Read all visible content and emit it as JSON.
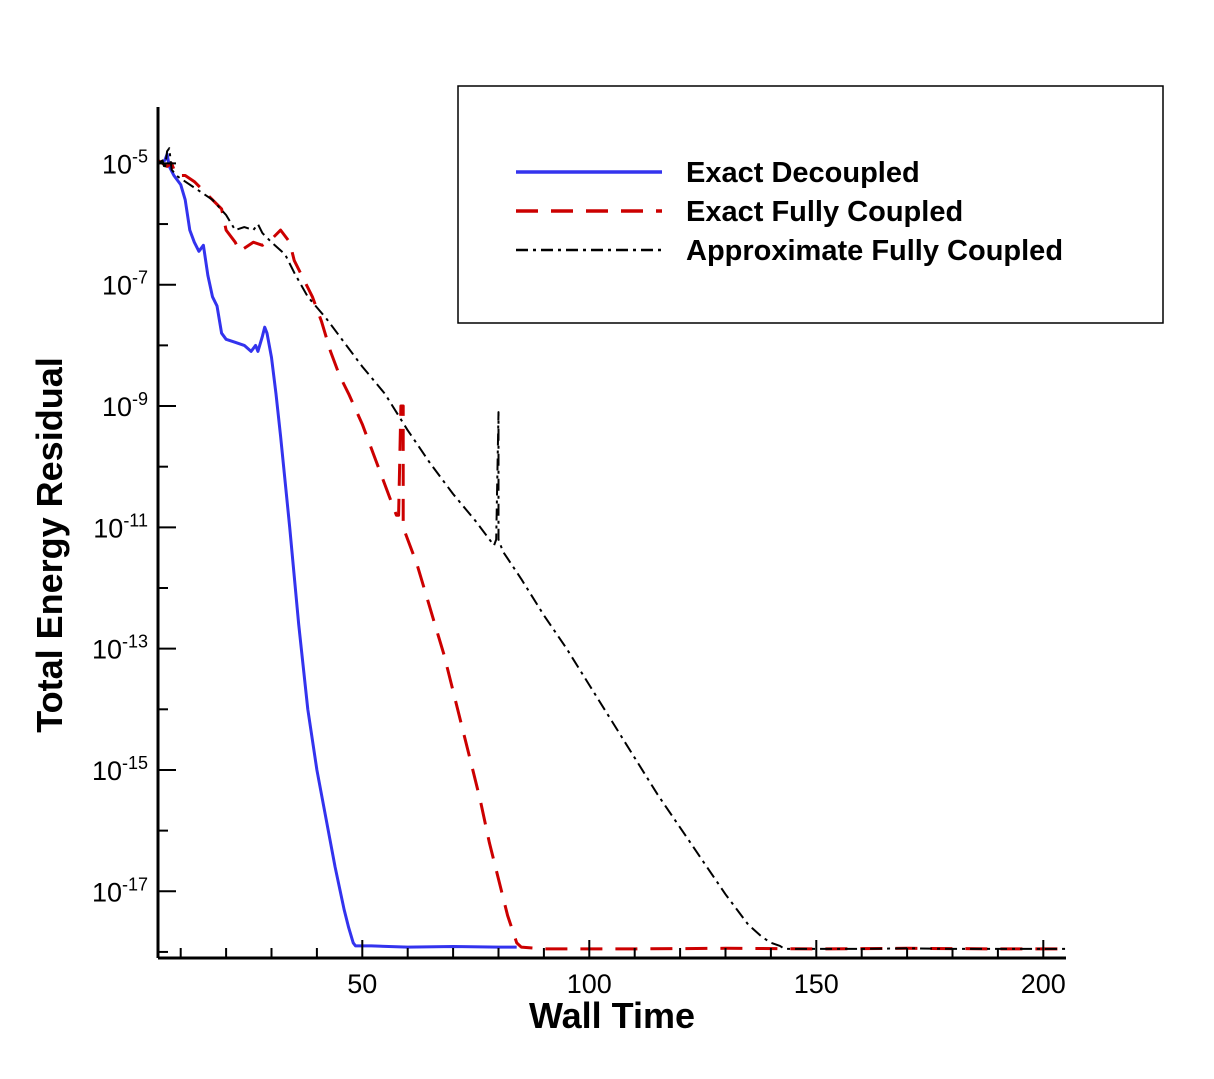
{
  "chart_data": {
    "type": "line",
    "xlabel": "Wall Time",
    "ylabel": "Total Energy Residual",
    "x_scale": "linear",
    "y_scale": "log",
    "xlim": [
      5,
      205
    ],
    "ylim": [
      -18.1,
      -4.4
    ],
    "x_ticks": [
      50,
      100,
      150,
      200
    ],
    "y_ticks": [
      {
        "base": "10",
        "exp": "-5",
        "value": -5
      },
      {
        "base": "10",
        "exp": "-7",
        "value": -7
      },
      {
        "base": "10",
        "exp": "-9",
        "value": -9
      },
      {
        "base": "10",
        "exp": "-11",
        "value": -11
      },
      {
        "base": "10",
        "exp": "-13",
        "value": -13
      },
      {
        "base": "10",
        "exp": "-15",
        "value": -15
      },
      {
        "base": "10",
        "exp": "-17",
        "value": -17
      }
    ],
    "legend_position": "top-right",
    "series": [
      {
        "name": "Exact Decoupled",
        "color": "#3333ee",
        "dash": "solid",
        "points": [
          [
            5,
            -5
          ],
          [
            6.5,
            -4.95
          ],
          [
            7,
            -4.85
          ],
          [
            7.5,
            -5.05
          ],
          [
            8.5,
            -5.2
          ],
          [
            10,
            -5.35
          ],
          [
            11,
            -5.6
          ],
          [
            12,
            -6.1
          ],
          [
            13,
            -6.3
          ],
          [
            14,
            -6.45
          ],
          [
            15,
            -6.35
          ],
          [
            16,
            -6.85
          ],
          [
            17,
            -7.2
          ],
          [
            18,
            -7.35
          ],
          [
            19,
            -7.8
          ],
          [
            20,
            -7.9
          ],
          [
            22,
            -7.95
          ],
          [
            24,
            -8.0
          ],
          [
            25.5,
            -8.1
          ],
          [
            26.5,
            -8.0
          ],
          [
            27,
            -8.1
          ],
          [
            28,
            -7.85
          ],
          [
            28.5,
            -7.7
          ],
          [
            29,
            -7.8
          ],
          [
            30,
            -8.2
          ],
          [
            31,
            -8.8
          ],
          [
            32,
            -9.5
          ],
          [
            34,
            -11.0
          ],
          [
            36,
            -12.6
          ],
          [
            38,
            -14.0
          ],
          [
            40,
            -15.0
          ],
          [
            42,
            -15.8
          ],
          [
            44,
            -16.6
          ],
          [
            46,
            -17.3
          ],
          [
            47,
            -17.6
          ],
          [
            48,
            -17.85
          ],
          [
            48.5,
            -17.9
          ],
          [
            52,
            -17.9
          ],
          [
            60,
            -17.92
          ],
          [
            70,
            -17.91
          ],
          [
            80,
            -17.92
          ],
          [
            84,
            -17.92
          ]
        ]
      },
      {
        "name": "Exact Fully Coupled",
        "color": "#cc0000",
        "dash": "dashed",
        "points": [
          [
            5,
            -4.95
          ],
          [
            7,
            -5.05
          ],
          [
            8,
            -5.0
          ],
          [
            9,
            -5.2
          ],
          [
            11,
            -5.2
          ],
          [
            13,
            -5.3
          ],
          [
            15,
            -5.45
          ],
          [
            17,
            -5.6
          ],
          [
            19,
            -5.75
          ],
          [
            20,
            -6.1
          ],
          [
            22,
            -6.3
          ],
          [
            23,
            -6.45
          ],
          [
            24,
            -6.4
          ],
          [
            26,
            -6.3
          ],
          [
            28,
            -6.35
          ],
          [
            30,
            -6.25
          ],
          [
            32,
            -6.1
          ],
          [
            34,
            -6.3
          ],
          [
            35,
            -6.6
          ],
          [
            37,
            -6.9
          ],
          [
            39,
            -7.2
          ],
          [
            41,
            -7.6
          ],
          [
            43,
            -8.1
          ],
          [
            45,
            -8.5
          ],
          [
            47,
            -8.8
          ],
          [
            50,
            -9.3
          ],
          [
            53,
            -9.9
          ],
          [
            56,
            -10.5
          ],
          [
            57.5,
            -10.8
          ],
          [
            58,
            -10.8
          ],
          [
            58.5,
            -9.0
          ],
          [
            59,
            -9.0
          ],
          [
            59,
            -11.0
          ],
          [
            60,
            -11.2
          ],
          [
            62,
            -11.6
          ],
          [
            64,
            -12.1
          ],
          [
            66,
            -12.6
          ],
          [
            68,
            -13.1
          ],
          [
            70,
            -13.7
          ],
          [
            72,
            -14.3
          ],
          [
            74,
            -14.9
          ],
          [
            76,
            -15.5
          ],
          [
            78,
            -16.2
          ],
          [
            80,
            -16.8
          ],
          [
            82,
            -17.4
          ],
          [
            84,
            -17.85
          ],
          [
            85,
            -17.92
          ],
          [
            90,
            -17.95
          ],
          [
            110,
            -17.95
          ],
          [
            130,
            -17.94
          ],
          [
            150,
            -17.95
          ],
          [
            170,
            -17.94
          ],
          [
            190,
            -17.95
          ],
          [
            205,
            -17.95
          ]
        ]
      },
      {
        "name": "Approximate Fully Coupled",
        "color": "#000000",
        "dash": "dashdot",
        "points": [
          [
            5,
            -5.0
          ],
          [
            6,
            -4.95
          ],
          [
            6.5,
            -5.1
          ],
          [
            7,
            -4.8
          ],
          [
            7.5,
            -4.75
          ],
          [
            8,
            -5.1
          ],
          [
            9,
            -5.2
          ],
          [
            11,
            -5.3
          ],
          [
            14,
            -5.45
          ],
          [
            17,
            -5.6
          ],
          [
            20,
            -5.85
          ],
          [
            22,
            -6.1
          ],
          [
            24,
            -6.05
          ],
          [
            26,
            -6.1
          ],
          [
            27,
            -6.0
          ],
          [
            28,
            -6.15
          ],
          [
            30,
            -6.3
          ],
          [
            33,
            -6.5
          ],
          [
            35,
            -6.8
          ],
          [
            38,
            -7.2
          ],
          [
            42,
            -7.55
          ],
          [
            46,
            -7.95
          ],
          [
            50,
            -8.35
          ],
          [
            55,
            -8.8
          ],
          [
            60,
            -9.4
          ],
          [
            65,
            -9.95
          ],
          [
            70,
            -10.45
          ],
          [
            75,
            -10.9
          ],
          [
            79,
            -11.3
          ],
          [
            79.5,
            -11.2
          ],
          [
            80,
            -9.1
          ],
          [
            80,
            -11.2
          ],
          [
            81,
            -11.4
          ],
          [
            85,
            -11.85
          ],
          [
            90,
            -12.45
          ],
          [
            95,
            -13.0
          ],
          [
            100,
            -13.6
          ],
          [
            105,
            -14.2
          ],
          [
            110,
            -14.8
          ],
          [
            115,
            -15.4
          ],
          [
            120,
            -15.95
          ],
          [
            125,
            -16.5
          ],
          [
            130,
            -17.05
          ],
          [
            135,
            -17.55
          ],
          [
            138,
            -17.75
          ],
          [
            140,
            -17.85
          ],
          [
            142,
            -17.9
          ],
          [
            143,
            -17.95
          ],
          [
            150,
            -17.95
          ],
          [
            160,
            -17.95
          ],
          [
            170,
            -17.94
          ],
          [
            180,
            -17.95
          ],
          [
            190,
            -17.95
          ],
          [
            205,
            -17.95
          ]
        ]
      }
    ]
  }
}
